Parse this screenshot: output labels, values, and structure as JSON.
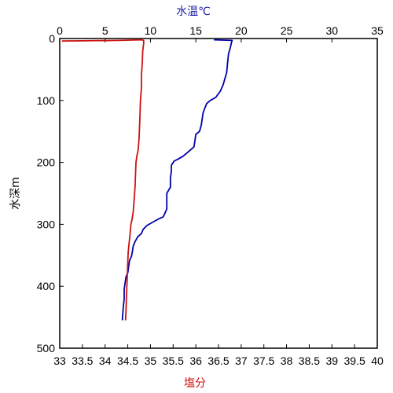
{
  "chart_data": {
    "type": "line",
    "top_axis": {
      "label": "水温℃",
      "color": "#1a1aa6",
      "range": [
        0,
        35
      ],
      "ticks": [
        0,
        5,
        10,
        15,
        20,
        25,
        30,
        35
      ]
    },
    "bottom_axis": {
      "label": "塩分",
      "color": "#cc1111",
      "range": [
        33,
        40
      ],
      "ticks": [
        "33",
        "33.5",
        "34",
        "34.5",
        "35",
        "35.5",
        "36",
        "36.5",
        "37",
        "37.5",
        "38",
        "38.5",
        "39",
        "39.5",
        "40"
      ]
    },
    "left_axis": {
      "label": "水深m",
      "range": [
        0,
        500
      ],
      "inverted": true,
      "ticks": [
        0,
        100,
        200,
        300,
        400,
        500
      ]
    },
    "grid": false,
    "series": [
      {
        "axis": "top",
        "color": "#0000aa",
        "points": [
          [
            17,
            2
          ],
          [
            19,
            3
          ],
          [
            18.9,
            8
          ],
          [
            18.8,
            15
          ],
          [
            18.6,
            25
          ],
          [
            18.5,
            40
          ],
          [
            18.4,
            55
          ],
          [
            18.2,
            65
          ],
          [
            18.0,
            75
          ],
          [
            17.7,
            85
          ],
          [
            17.2,
            95
          ],
          [
            16.6,
            100
          ],
          [
            16.2,
            105
          ],
          [
            16.0,
            112
          ],
          [
            15.8,
            120
          ],
          [
            15.7,
            130
          ],
          [
            15.6,
            140
          ],
          [
            15.4,
            150
          ],
          [
            15.0,
            155
          ],
          [
            14.9,
            165
          ],
          [
            14.8,
            175
          ],
          [
            14.4,
            180
          ],
          [
            14.0,
            185
          ],
          [
            13.6,
            190
          ],
          [
            13.0,
            195
          ],
          [
            12.6,
            198
          ],
          [
            12.3,
            205
          ],
          [
            12.3,
            215
          ],
          [
            12.2,
            225
          ],
          [
            12.2,
            240
          ],
          [
            12.0,
            245
          ],
          [
            11.8,
            250
          ],
          [
            11.8,
            260
          ],
          [
            11.8,
            275
          ],
          [
            11.6,
            282
          ],
          [
            11.4,
            288
          ],
          [
            10.8,
            292
          ],
          [
            10.2,
            297
          ],
          [
            9.6,
            302
          ],
          [
            9.2,
            308
          ],
          [
            9.0,
            315
          ],
          [
            8.6,
            320
          ],
          [
            8.3,
            328
          ],
          [
            8.1,
            335
          ],
          [
            8.0,
            345
          ],
          [
            7.9,
            352
          ],
          [
            7.7,
            358
          ],
          [
            7.6,
            368
          ],
          [
            7.5,
            378
          ],
          [
            7.3,
            385
          ],
          [
            7.2,
            395
          ],
          [
            7.1,
            405
          ],
          [
            7.1,
            420
          ],
          [
            7.0,
            435
          ],
          [
            6.9,
            455
          ]
        ]
      },
      {
        "axis": "bottom",
        "color": "#cc1111",
        "points": [
          [
            33.05,
            4
          ],
          [
            34.3,
            3
          ],
          [
            34.8,
            2
          ],
          [
            34.85,
            3
          ],
          [
            34.85,
            8
          ],
          [
            34.83,
            20
          ],
          [
            34.82,
            40
          ],
          [
            34.8,
            60
          ],
          [
            34.8,
            80
          ],
          [
            34.78,
            100
          ],
          [
            34.77,
            120
          ],
          [
            34.76,
            140
          ],
          [
            34.75,
            160
          ],
          [
            34.73,
            180
          ],
          [
            34.7,
            190
          ],
          [
            34.68,
            200
          ],
          [
            34.67,
            220
          ],
          [
            34.66,
            240
          ],
          [
            34.64,
            260
          ],
          [
            34.62,
            280
          ],
          [
            34.6,
            290
          ],
          [
            34.57,
            300
          ],
          [
            34.55,
            315
          ],
          [
            34.53,
            330
          ],
          [
            34.51,
            345
          ],
          [
            34.5,
            360
          ],
          [
            34.49,
            380
          ],
          [
            34.48,
            400
          ],
          [
            34.47,
            420
          ],
          [
            34.46,
            440
          ],
          [
            34.45,
            455
          ]
        ]
      }
    ]
  }
}
